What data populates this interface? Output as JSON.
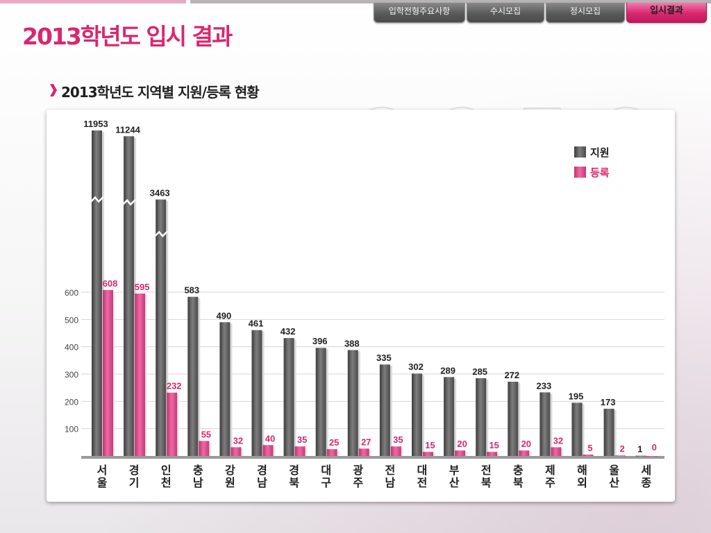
{
  "page": {
    "title": "2013학년도 입시 결과"
  },
  "tabs": [
    {
      "label": "입학전형주요사항",
      "active": false
    },
    {
      "label": "수시모집",
      "active": false
    },
    {
      "label": "정시모집",
      "active": false
    },
    {
      "label": "입시결과",
      "active": true
    }
  ],
  "section": {
    "title": "2013학년도 지역별 지원/등록 현황"
  },
  "colors": {
    "accent": "#d9266f",
    "applied": "#5d5d5d",
    "enrolled": "#d9468a"
  },
  "chart_data": {
    "type": "bar",
    "title": "",
    "xlabel": "",
    "ylabel": "",
    "ylim": [
      0,
      600
    ],
    "yticks": [
      100,
      200,
      300,
      400,
      500,
      600
    ],
    "y_axis_break": true,
    "grid": true,
    "legend_position": "top-right",
    "categories": [
      [
        "서",
        "울"
      ],
      [
        "경",
        "기"
      ],
      [
        "인",
        "천"
      ],
      [
        "충",
        "남"
      ],
      [
        "강",
        "원"
      ],
      [
        "경",
        "남"
      ],
      [
        "경",
        "북"
      ],
      [
        "대",
        "구"
      ],
      [
        "광",
        "주"
      ],
      [
        "전",
        "남"
      ],
      [
        "대",
        "전"
      ],
      [
        "부",
        "산"
      ],
      [
        "전",
        "북"
      ],
      [
        "충",
        "북"
      ],
      [
        "제",
        "주"
      ],
      [
        "해",
        "외"
      ],
      [
        "울",
        "산"
      ],
      [
        "세",
        "종"
      ]
    ],
    "series": [
      {
        "name": "지원",
        "values": [
          11953,
          11244,
          3463,
          583,
          490,
          461,
          432,
          396,
          388,
          335,
          302,
          289,
          285,
          272,
          233,
          195,
          173,
          1
        ]
      },
      {
        "name": "등록",
        "values": [
          608,
          595,
          232,
          55,
          32,
          40,
          35,
          25,
          27,
          35,
          15,
          20,
          15,
          20,
          32,
          5,
          2,
          0
        ]
      }
    ]
  }
}
